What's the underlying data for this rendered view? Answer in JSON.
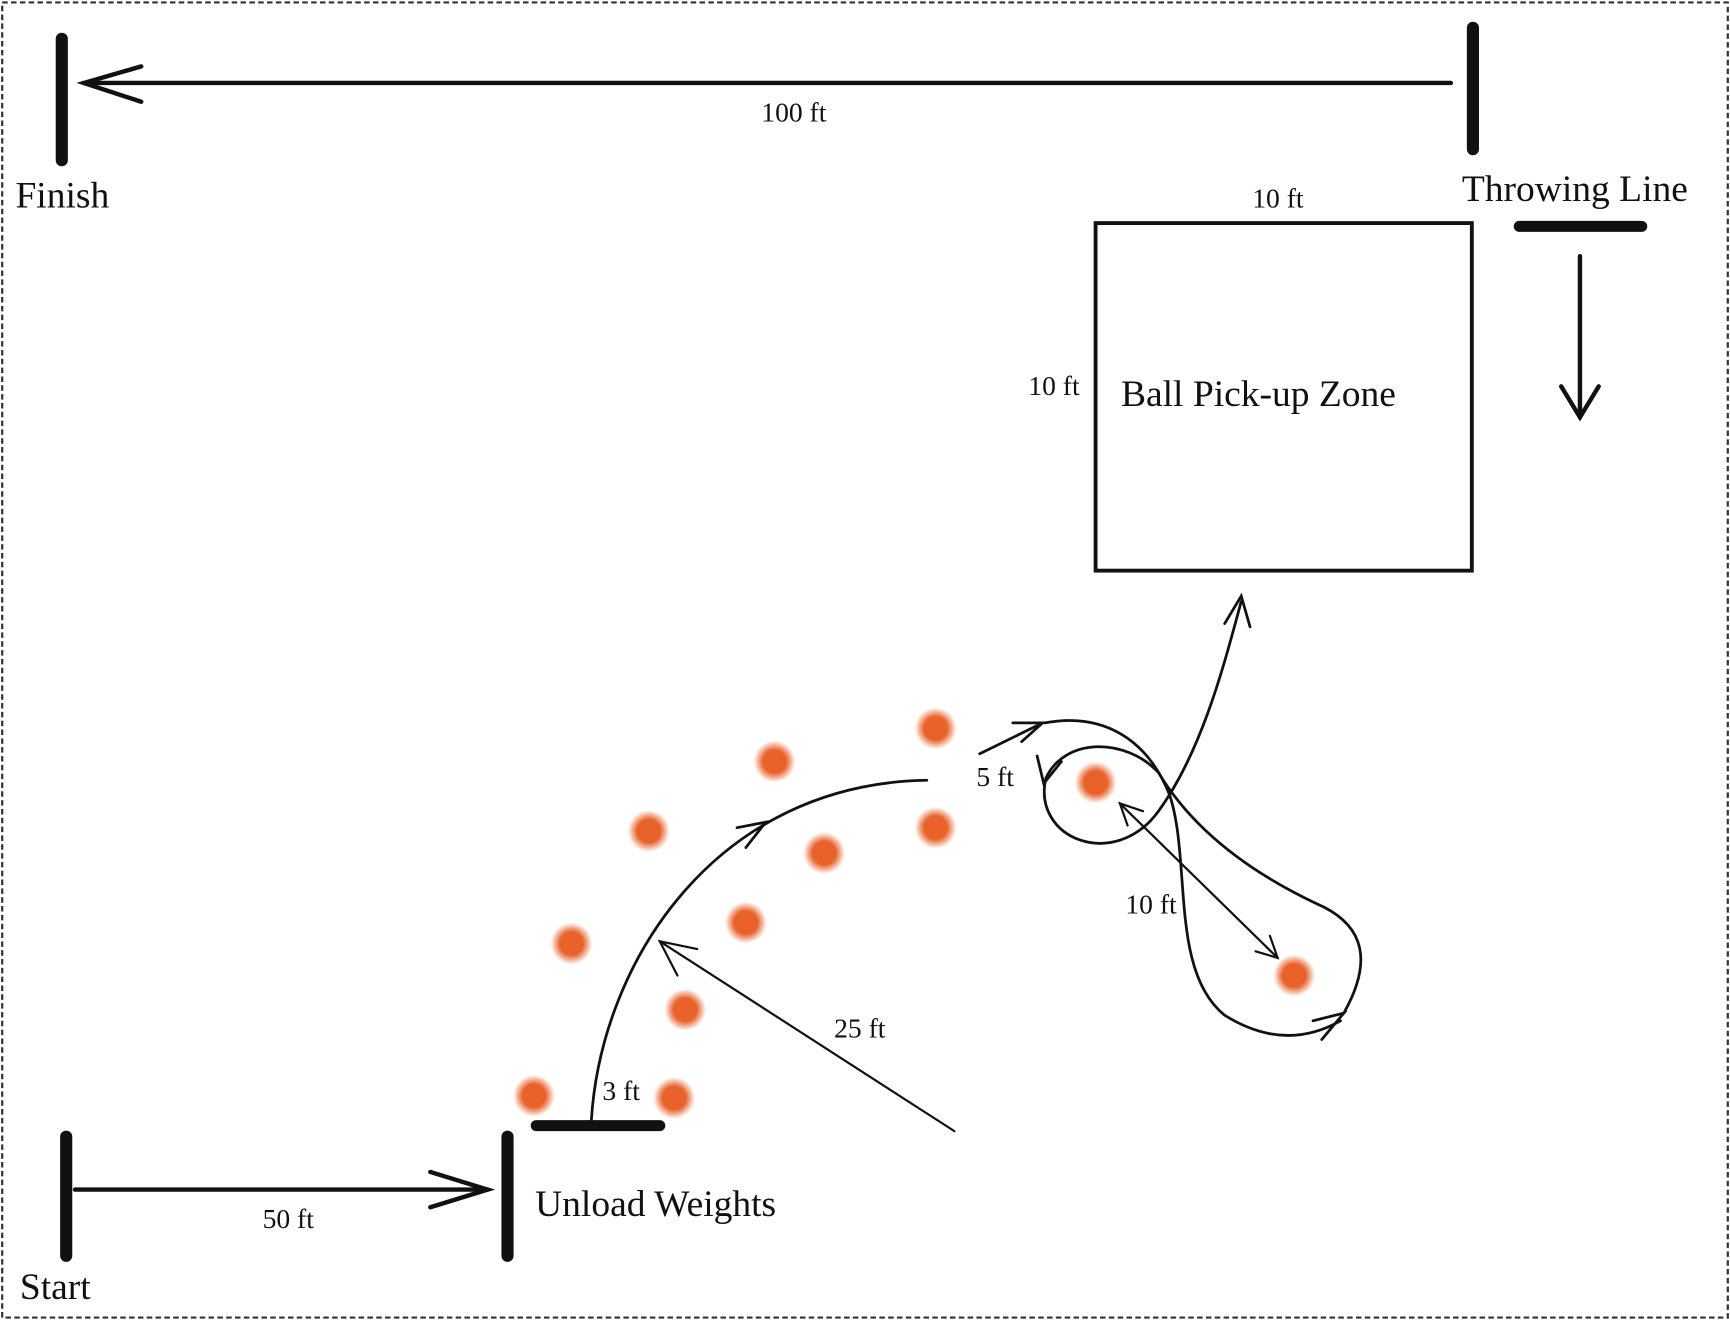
{
  "labels": {
    "finish": "Finish",
    "throwing_line": "Throwing Line",
    "start": "Start",
    "unload_weights": "Unload Weights",
    "ball_pickup_zone": "Ball Pick-up Zone"
  },
  "dimensions": {
    "top_run": "100 ft",
    "bottom_run": "50 ft",
    "box_width": "10 ft",
    "box_height": "10 ft",
    "unload_line": "3 ft",
    "curve_radius": "25 ft",
    "cone_gap": "5 ft",
    "cone_spacing": "10 ft"
  },
  "colors": {
    "cone": "#e8622a",
    "line": "#111111"
  }
}
